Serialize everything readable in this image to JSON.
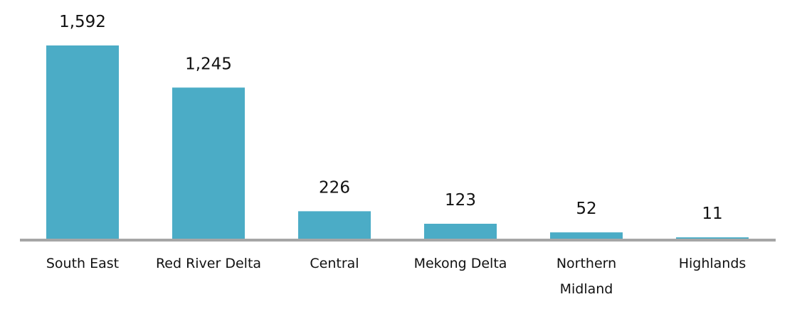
{
  "chart_data": {
    "type": "bar",
    "categories": [
      [
        "South East"
      ],
      [
        "Red River Delta"
      ],
      [
        "Central"
      ],
      [
        "Mekong Delta"
      ],
      [
        "Northern",
        "Midland"
      ],
      [
        "Highlands"
      ]
    ],
    "values": [
      1592,
      1245,
      226,
      123,
      52,
      11
    ],
    "value_labels": [
      "1,592",
      "1,245",
      "226",
      "123",
      "52",
      "11"
    ],
    "title": "",
    "xlabel": "",
    "ylabel": "",
    "ylim": [
      0,
      1592
    ],
    "grid": false,
    "legend": "none",
    "colors": {
      "bar": "#4BACC6",
      "axis": "#A6A6A6"
    }
  }
}
